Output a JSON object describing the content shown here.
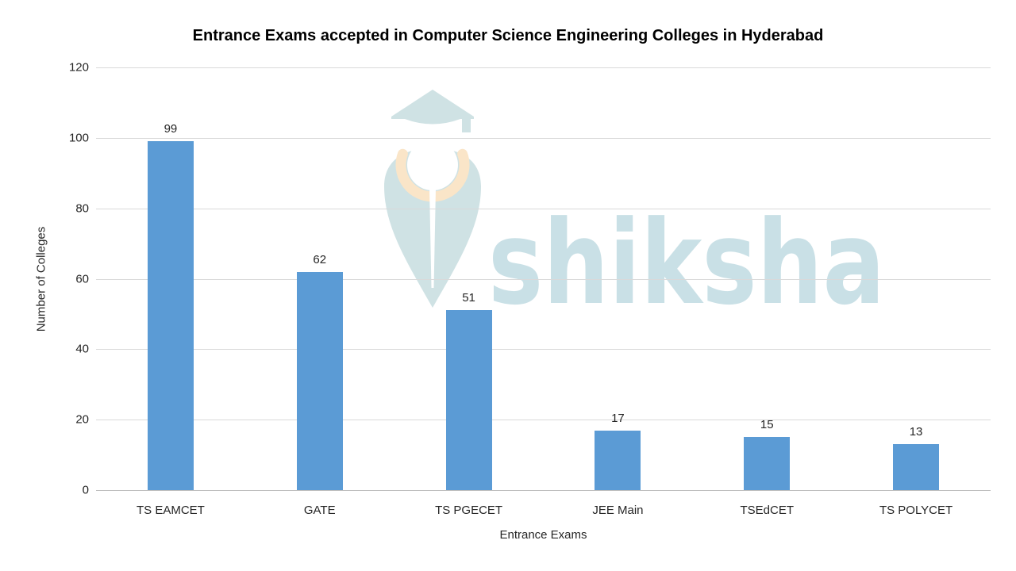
{
  "chart_data": {
    "type": "bar",
    "title": "Entrance Exams accepted in Computer Science Engineering Colleges in Hyderabad",
    "xlabel": "Entrance Exams",
    "ylabel": "Number of Colleges",
    "categories": [
      "TS EAMCET",
      "GATE",
      "TS PGECET",
      "JEE Main",
      "TSEdCET",
      "TS POLYCET"
    ],
    "values": [
      99,
      62,
      51,
      17,
      15,
      13
    ],
    "ylim": [
      0,
      120
    ],
    "ytick_step": 20,
    "yticks": [
      0,
      20,
      40,
      60,
      80,
      100,
      120
    ],
    "grid": "horizontal",
    "legend": "none",
    "data_labels_shown": true,
    "bar_color": "#5b9bd5",
    "gridline_color": "#d9d9d9",
    "text_color": "#262626",
    "title_color": "#000000"
  },
  "watermark": {
    "text": "shiksha",
    "logo_color": "#cfe2e4",
    "text_color": "#c9e0e6",
    "accent_color": "#fae5c8"
  }
}
